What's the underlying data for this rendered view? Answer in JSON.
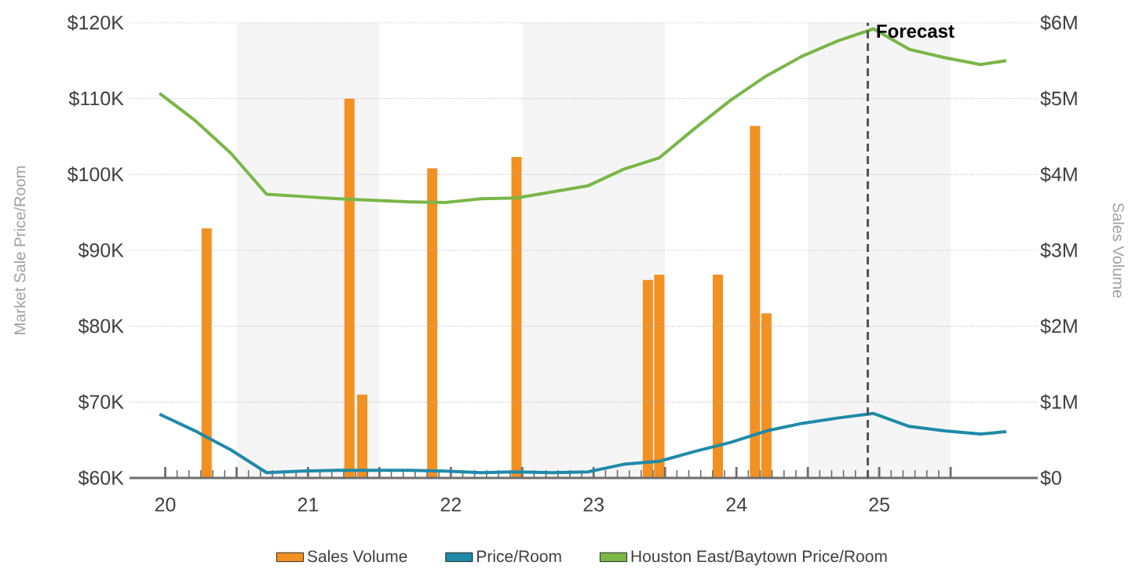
{
  "chart_data": {
    "type": "line",
    "ylabel": "Market Sale Price/Room",
    "y2label": "Sales Volume",
    "x": [
      19.96,
      20.21,
      20.46,
      20.71,
      20.96,
      21.21,
      21.46,
      21.71,
      21.96,
      22.21,
      22.46,
      22.71,
      22.96,
      23.21,
      23.46,
      23.71,
      23.96,
      24.21,
      24.46,
      24.71,
      24.96,
      25.21,
      25.46,
      25.71,
      25.89
    ],
    "series": [
      {
        "name": "Sales Volume",
        "type": "bar",
        "axis": "y2",
        "color": "#f39022",
        "x": [
          20.29,
          21.29,
          21.38,
          21.87,
          22.46,
          23.38,
          23.46,
          23.87,
          24.13,
          24.21
        ],
        "values": [
          3.29,
          5.0,
          1.1,
          4.08,
          4.23,
          2.61,
          2.68,
          2.68,
          4.64,
          2.17
        ]
      },
      {
        "name": "Price/Room",
        "color": "#1f8aa8",
        "values": [
          68.4,
          66.2,
          63.7,
          60.7,
          60.9,
          61.0,
          61.0,
          61.0,
          60.9,
          60.7,
          60.8,
          60.7,
          60.8,
          61.8,
          62.2,
          63.5,
          64.7,
          66.2,
          67.2,
          67.9,
          68.5,
          66.8,
          66.2,
          65.8,
          66.1
        ]
      },
      {
        "name": "Houston East/Baytown Price/Room",
        "color": "#7ab648",
        "values": [
          110.7,
          107.1,
          102.8,
          97.4,
          97.1,
          96.8,
          96.6,
          96.4,
          96.3,
          96.8,
          96.9,
          97.7,
          98.5,
          100.7,
          102.2,
          106.1,
          109.8,
          113.0,
          115.6,
          117.6,
          119.2,
          116.5,
          115.4,
          114.5,
          115.0
        ]
      }
    ],
    "xlim": [
      19.75,
      26.11
    ],
    "xticks": [
      20,
      {
        "value": 20.5,
        "label": null
      },
      21,
      {
        "value": 21.5,
        "label": null
      },
      22,
      {
        "value": 22.5,
        "label": null
      },
      23,
      {
        "value": 23.5,
        "label": null
      },
      24,
      {
        "value": 24.5,
        "label": null
      },
      25,
      {
        "value": 25.5,
        "label": null
      }
    ],
    "ylim": [
      60,
      120
    ],
    "yticks": [
      {
        "value": 60,
        "label": "$60K"
      },
      {
        "value": 70,
        "label": "$70K"
      },
      {
        "value": 80,
        "label": "$80K"
      },
      {
        "value": 90,
        "label": "$90K"
      },
      {
        "value": 100,
        "label": "$100K"
      },
      {
        "value": 110,
        "label": "$110K"
      },
      {
        "value": 120,
        "label": "$120K"
      }
    ],
    "y2lim": [
      0,
      6
    ],
    "y2ticks": [
      {
        "value": 0,
        "label": "$0"
      },
      {
        "value": 1,
        "label": "$1M"
      },
      {
        "value": 2,
        "label": "$2M"
      },
      {
        "value": 3,
        "label": "$3M"
      },
      {
        "value": 4,
        "label": "$4M"
      },
      {
        "value": 5,
        "label": "$5M"
      },
      {
        "value": 6,
        "label": "$6M"
      }
    ],
    "bands": [
      {
        "axis": "x",
        "from": 20.5,
        "to": 21.5,
        "color": "#f5f5f5"
      },
      {
        "axis": "x",
        "from": 22.5,
        "to": 23.5,
        "color": "#f5f5f5"
      },
      {
        "axis": "x",
        "from": 24.5,
        "to": 25.5,
        "color": "#f5f5f5"
      }
    ],
    "ref_lines": [
      {
        "axis": "x",
        "value": 24.92,
        "label": "Forecast",
        "color": "#555555",
        "line_style": "dashed"
      }
    ],
    "grid": "y",
    "legend": "bottom",
    "marker": "none",
    "line_style": "solid"
  }
}
